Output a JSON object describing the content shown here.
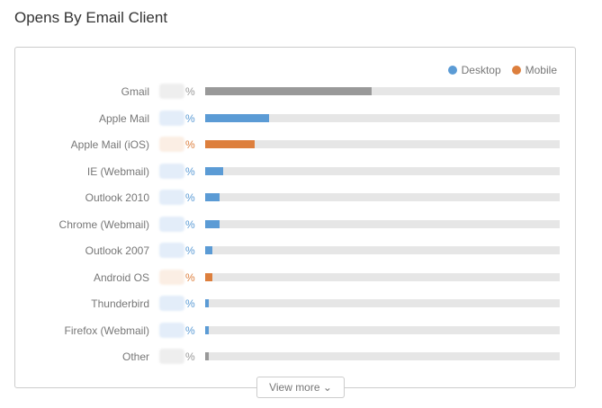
{
  "title": "Opens By Email Client",
  "view_more": "View more",
  "chart_data": {
    "type": "bar",
    "orientation": "horizontal",
    "title": "Opens By Email Client",
    "legend": [
      {
        "name": "Desktop",
        "color": "#5b9bd5"
      },
      {
        "name": "Mobile",
        "color": "#dd7f3d"
      }
    ],
    "legend_position": "top-right",
    "xlim": [
      0,
      100
    ],
    "categories": [
      "Gmail",
      "Apple Mail",
      "Apple Mail (iOS)",
      "IE (Webmail)",
      "Outlook 2010",
      "Chrome (Webmail)",
      "Outlook 2007",
      "Android OS",
      "Thunderbird",
      "Firefox (Webmail)",
      "Other"
    ],
    "values": [
      47,
      18,
      14,
      5,
      4,
      4,
      2,
      2,
      1,
      1,
      1
    ],
    "kinds": [
      "other",
      "desktop",
      "mobile",
      "desktop",
      "desktop",
      "desktop",
      "desktop",
      "mobile",
      "desktop",
      "desktop",
      "other"
    ],
    "value_suffix": "%"
  },
  "colors": {
    "desktop": "#5b9bd5",
    "mobile": "#dd7f3d",
    "other": "#999999"
  }
}
